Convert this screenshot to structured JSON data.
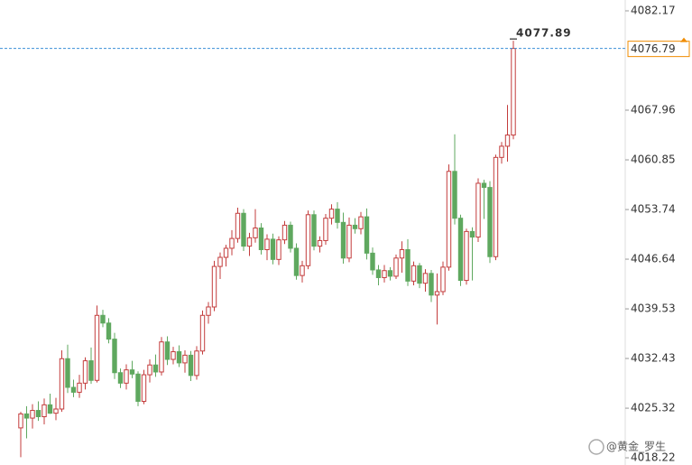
{
  "chart_data": {
    "type": "candlestick",
    "up_color": "#c33c3c",
    "down_color": "#5fa85f",
    "last_color": "#f08c00",
    "ylim": [
      4017.19,
      4083.72
    ],
    "yticks": [
      4082.17,
      4067.96,
      4060.85,
      4053.74,
      4046.64,
      4039.53,
      4032.43,
      4025.32,
      4018.22
    ],
    "last_price": 4076.79,
    "high_annotation": 4077.89,
    "watermark": "@黄金_罗生",
    "ohlc": [
      [
        4022.5,
        4024.8,
        4018.3,
        4024.5
      ],
      [
        4024.5,
        4025.6,
        4021.0,
        4023.9
      ],
      [
        4023.9,
        4025.9,
        4022.4,
        4025.0
      ],
      [
        4025.0,
        4026.3,
        4023.5,
        4024.1
      ],
      [
        4024.1,
        4026.7,
        4023.0,
        4025.8
      ],
      [
        4025.8,
        4027.4,
        4024.5,
        4024.6
      ],
      [
        4024.6,
        4026.8,
        4023.6,
        4025.2
      ],
      [
        4025.2,
        4033.6,
        4024.8,
        4032.4
      ],
      [
        4032.4,
        4034.4,
        4027.5,
        4028.3
      ],
      [
        4028.3,
        4029.4,
        4026.9,
        4027.6
      ],
      [
        4027.6,
        4030.1,
        4026.8,
        4028.9
      ],
      [
        4028.9,
        4032.6,
        4028.0,
        4032.1
      ],
      [
        4032.1,
        4034.0,
        4028.8,
        4029.3
      ],
      [
        4029.3,
        4040.0,
        4029.0,
        4038.6
      ],
      [
        4038.6,
        4039.4,
        4036.9,
        4037.5
      ],
      [
        4037.5,
        4038.2,
        4034.6,
        4035.2
      ],
      [
        4035.2,
        4036.1,
        4029.5,
        4030.4
      ],
      [
        4030.4,
        4031.0,
        4028.2,
        4028.9
      ],
      [
        4028.9,
        4031.6,
        4028.0,
        4030.8
      ],
      [
        4030.8,
        4032.1,
        4029.6,
        4030.2
      ],
      [
        4030.2,
        4030.6,
        4025.6,
        4026.3
      ],
      [
        4026.3,
        4030.8,
        4025.9,
        4030.1
      ],
      [
        4030.1,
        4032.3,
        4029.0,
        4031.5
      ],
      [
        4031.5,
        4033.0,
        4029.8,
        4030.5
      ],
      [
        4030.5,
        4035.5,
        4030.0,
        4034.8
      ],
      [
        4034.8,
        4035.6,
        4031.5,
        4032.3
      ],
      [
        4032.3,
        4034.1,
        4031.6,
        4033.4
      ],
      [
        4033.4,
        4034.3,
        4031.2,
        4031.8
      ],
      [
        4031.8,
        4033.6,
        4030.4,
        4032.9
      ],
      [
        4032.9,
        4033.5,
        4029.2,
        4030.0
      ],
      [
        4030.0,
        4034.2,
        4029.4,
        4033.5
      ],
      [
        4033.5,
        4039.3,
        4033.0,
        4038.6
      ],
      [
        4038.6,
        4040.5,
        4037.4,
        4039.8
      ],
      [
        4039.8,
        4046.4,
        4039.2,
        4045.6
      ],
      [
        4045.6,
        4047.6,
        4043.8,
        4046.9
      ],
      [
        4046.9,
        4048.7,
        4045.6,
        4048.2
      ],
      [
        4048.2,
        4050.8,
        4047.2,
        4049.6
      ],
      [
        4049.6,
        4054.0,
        4049.0,
        4053.2
      ],
      [
        4053.2,
        4053.8,
        4047.8,
        4048.5
      ],
      [
        4048.5,
        4050.4,
        4047.1,
        4049.7
      ],
      [
        4049.7,
        4053.8,
        4049.0,
        4051.1
      ],
      [
        4051.1,
        4051.8,
        4047.3,
        4048.0
      ],
      [
        4048.0,
        4050.2,
        4046.5,
        4049.5
      ],
      [
        4049.5,
        4050.3,
        4045.9,
        4046.6
      ],
      [
        4046.6,
        4049.9,
        4045.8,
        4049.4
      ],
      [
        4049.4,
        4052.1,
        4048.8,
        4051.5
      ],
      [
        4051.5,
        4052.0,
        4047.6,
        4048.2
      ],
      [
        4048.2,
        4048.9,
        4043.7,
        4044.3
      ],
      [
        4044.3,
        4046.4,
        4043.3,
        4045.7
      ],
      [
        4045.7,
        4053.6,
        4045.2,
        4053.0
      ],
      [
        4053.0,
        4053.6,
        4047.9,
        4048.5
      ],
      [
        4048.5,
        4049.9,
        4047.6,
        4049.3
      ],
      [
        4049.3,
        4053.1,
        4048.7,
        4052.5
      ],
      [
        4052.5,
        4054.5,
        4051.6,
        4053.8
      ],
      [
        4053.8,
        4054.8,
        4051.0,
        4051.9
      ],
      [
        4051.9,
        4053.3,
        4046.0,
        4046.8
      ],
      [
        4046.8,
        4052.6,
        4046.2,
        4051.5
      ],
      [
        4051.5,
        4052.5,
        4050.3,
        4051.0
      ],
      [
        4051.0,
        4053.4,
        4050.2,
        4052.7
      ],
      [
        4052.7,
        4053.9,
        4046.6,
        4047.5
      ],
      [
        4047.5,
        4048.3,
        4044.4,
        4045.1
      ],
      [
        4045.1,
        4045.8,
        4042.9,
        4044.0
      ],
      [
        4044.0,
        4045.8,
        4043.3,
        4045.0
      ],
      [
        4045.0,
        4045.5,
        4043.6,
        4044.2
      ],
      [
        4044.2,
        4047.3,
        4043.8,
        4046.8
      ],
      [
        4046.8,
        4049.2,
        4044.7,
        4048.0
      ],
      [
        4048.0,
        4049.5,
        4042.8,
        4043.5
      ],
      [
        4043.5,
        4046.3,
        4042.9,
        4045.7
      ],
      [
        4045.7,
        4046.1,
        4042.5,
        4043.2
      ],
      [
        4043.2,
        4045.2,
        4042.0,
        4044.6
      ],
      [
        4044.6,
        4045.1,
        4040.5,
        4041.5
      ],
      [
        4041.5,
        4044.6,
        4037.3,
        4042.0
      ],
      [
        4042.0,
        4046.3,
        4041.5,
        4045.5
      ],
      [
        4045.5,
        4060.2,
        4045.0,
        4059.2
      ],
      [
        4059.2,
        4064.5,
        4051.6,
        4052.5
      ],
      [
        4052.5,
        4053.0,
        4042.8,
        4043.6
      ],
      [
        4043.6,
        4051.0,
        4043.0,
        4050.6
      ],
      [
        4050.6,
        4051.2,
        4043.6,
        4049.8
      ],
      [
        4049.8,
        4058.2,
        4049.1,
        4057.5
      ],
      [
        4057.5,
        4058.0,
        4052.4,
        4056.9
      ],
      [
        4056.9,
        4057.8,
        4046.1,
        4047.0
      ],
      [
        4047.0,
        4061.6,
        4046.5,
        4061.2
      ],
      [
        4061.2,
        4063.4,
        4060.3,
        4062.8
      ],
      [
        4062.8,
        4068.7,
        4060.6,
        4064.4
      ],
      [
        4064.4,
        4077.89,
        4063.8,
        4076.79
      ]
    ]
  }
}
